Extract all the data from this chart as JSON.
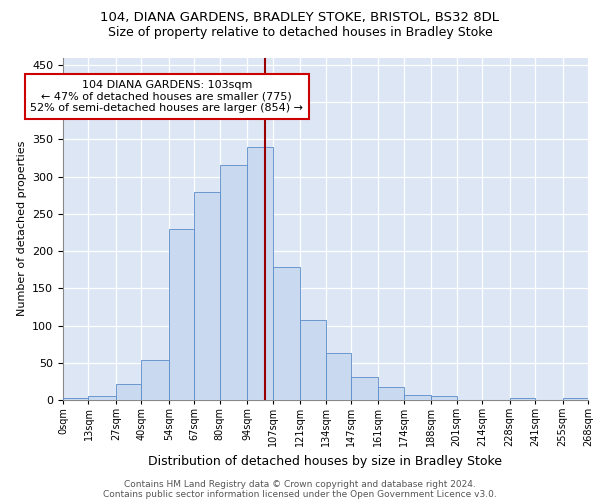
{
  "title1": "104, DIANA GARDENS, BRADLEY STOKE, BRISTOL, BS32 8DL",
  "title2": "Size of property relative to detached houses in Bradley Stoke",
  "xlabel": "Distribution of detached houses by size in Bradley Stoke",
  "ylabel": "Number of detached properties",
  "footnote": "Contains HM Land Registry data © Crown copyright and database right 2024.\nContains public sector information licensed under the Open Government Licence v3.0.",
  "bin_labels": [
    "0sqm",
    "13sqm",
    "27sqm",
    "40sqm",
    "54sqm",
    "67sqm",
    "80sqm",
    "94sqm",
    "107sqm",
    "121sqm",
    "134sqm",
    "147sqm",
    "161sqm",
    "174sqm",
    "188sqm",
    "201sqm",
    "214sqm",
    "228sqm",
    "241sqm",
    "255sqm",
    "268sqm"
  ],
  "bin_edges": [
    0,
    13,
    27,
    40,
    54,
    67,
    80,
    94,
    107,
    121,
    134,
    147,
    161,
    174,
    188,
    201,
    214,
    228,
    241,
    255,
    268
  ],
  "bar_heights": [
    3,
    6,
    22,
    54,
    230,
    280,
    315,
    340,
    178,
    108,
    63,
    31,
    18,
    7,
    5,
    0,
    0,
    3,
    0,
    3
  ],
  "bar_color": "#c9d9ef",
  "bar_edge_color": "#5b8cc8",
  "vline_x": 103,
  "vline_color": "#990000",
  "annotation_line1": "104 DIANA GARDENS: 103sqm",
  "annotation_line2": "← 47% of detached houses are smaller (775)",
  "annotation_line3": "52% of semi-detached houses are larger (854) →",
  "annotation_box_facecolor": "white",
  "annotation_box_edgecolor": "#cc0000",
  "ylim": [
    0,
    460
  ],
  "yticks": [
    0,
    50,
    100,
    150,
    200,
    250,
    300,
    350,
    400,
    450
  ],
  "bg_color": "#dce6f5",
  "grid_color": "white",
  "title1_fontsize": 9.5,
  "title2_fontsize": 9,
  "tick_fontsize": 7,
  "ytick_fontsize": 8,
  "ylabel_fontsize": 8,
  "xlabel_fontsize": 9,
  "annot_fontsize": 8,
  "footnote_fontsize": 6.5
}
